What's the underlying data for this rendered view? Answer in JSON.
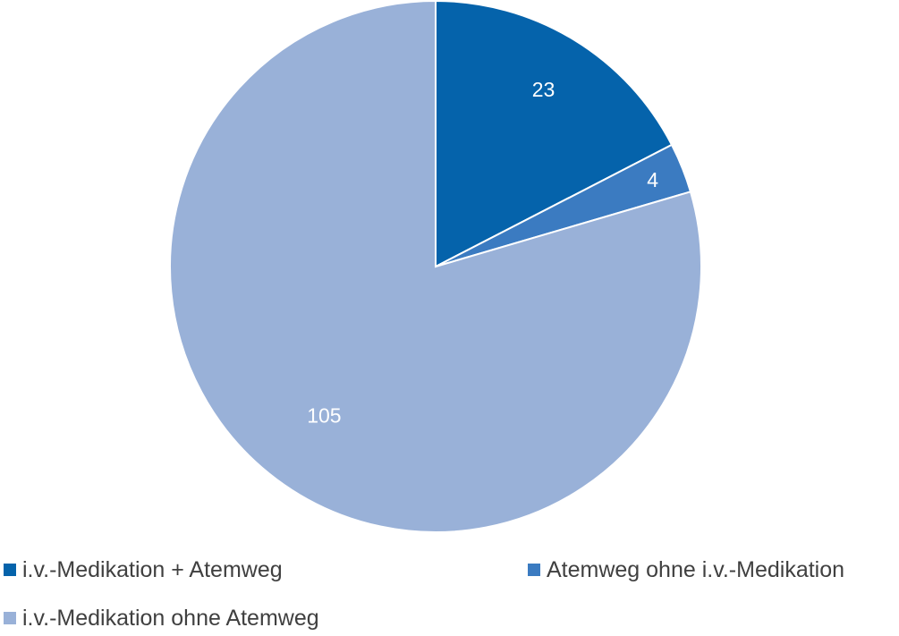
{
  "chart_data": {
    "type": "pie",
    "title": "",
    "slices": [
      {
        "label": "i.v.-Medikation + Atemweg",
        "value": 23,
        "color": "#0563ab"
      },
      {
        "label": "Atemweg ohne i.v.-Medikation",
        "value": 4,
        "color": "#3b7bc1"
      },
      {
        "label": "i.v.-Medikation ohne Atemweg",
        "value": 105,
        "color": "#99b1d8"
      }
    ],
    "start_angle_deg": 0,
    "direction": "clockwise",
    "data_labels": true,
    "legend_position": "bottom"
  }
}
